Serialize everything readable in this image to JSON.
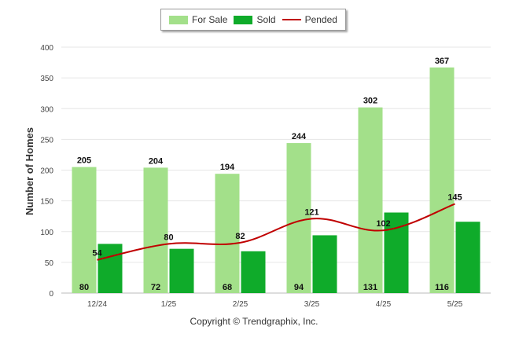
{
  "chart_data": {
    "type": "bar",
    "categories": [
      "12/24",
      "1/25",
      "2/25",
      "3/25",
      "4/25",
      "5/25"
    ],
    "series": [
      {
        "name": "For Sale",
        "type": "bar",
        "color": "#a3e08a",
        "values": [
          205,
          204,
          194,
          244,
          302,
          367
        ]
      },
      {
        "name": "Sold",
        "type": "bar",
        "color": "#0fab2a",
        "values": [
          80,
          72,
          68,
          94,
          131,
          116
        ]
      },
      {
        "name": "Pended",
        "type": "line",
        "color": "#c00000",
        "values": [
          54,
          80,
          82,
          121,
          102,
          145
        ]
      }
    ],
    "ylabel": "Number of Homes",
    "xlabel": "",
    "ylim": [
      0,
      400
    ],
    "yticks": [
      0,
      50,
      100,
      150,
      200,
      250,
      300,
      350,
      400
    ],
    "grid": true,
    "legend_position": "top-center"
  },
  "legend": {
    "for_sale": "For Sale",
    "sold": "Sold",
    "pended": "Pended"
  },
  "footer": {
    "copyright": "Copyright © Trendgraphix, Inc."
  }
}
